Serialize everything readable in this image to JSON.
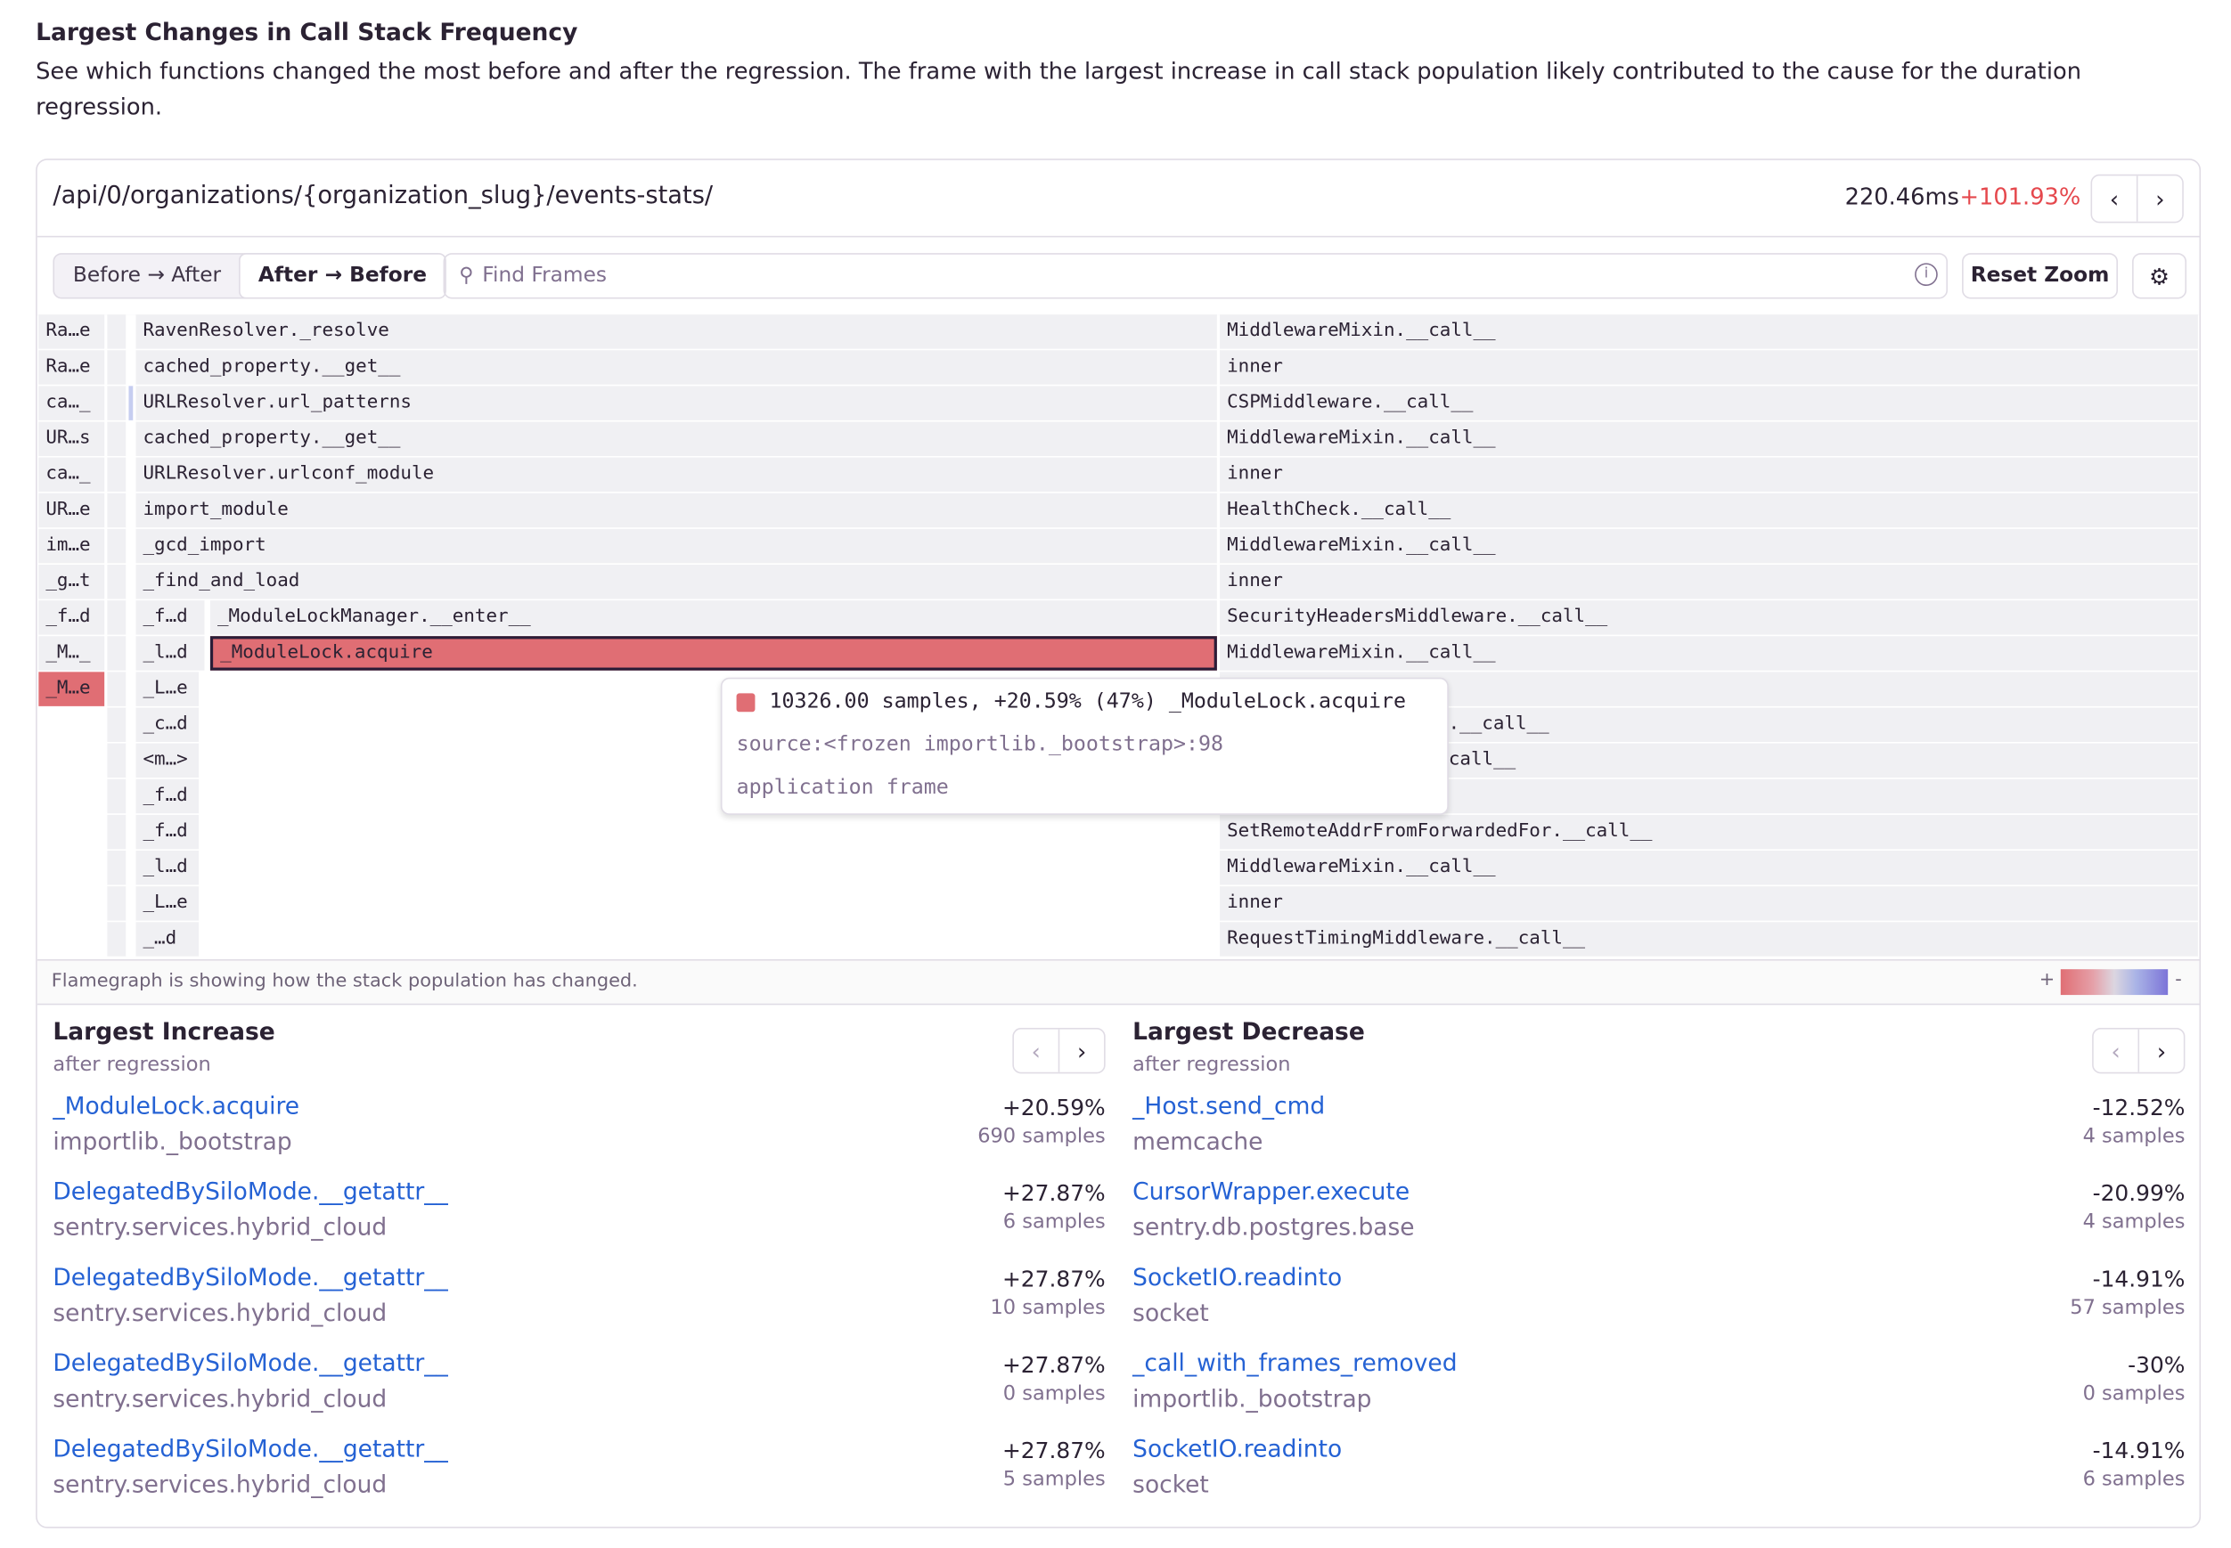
{
  "section": {
    "title": "Largest Changes in Call Stack Frequency",
    "description": "See which functions changed the most before and after the regression. The frame with the largest increase in call stack population likely contributed to the cause for the duration regression."
  },
  "header": {
    "route": "/api/0/organizations/{organization_slug}/events-stats/",
    "duration": "220.46ms",
    "change": "+101.93%",
    "prev_icon": "chevron-left-icon",
    "next_icon": "chevron-right-icon"
  },
  "toolbar": {
    "modes": [
      "Before → After",
      "After → Before"
    ],
    "active_mode": "After → Before",
    "search_placeholder": "Find Frames",
    "reset_zoom": "Reset Zoom",
    "settings_icon": "gear-icon"
  },
  "colors": {
    "increase": "#e06e74",
    "decrease": "#7c74d8",
    "link": "#2562d4",
    "change_text": "#e5484d"
  },
  "flamegraph": {
    "lane_a": [
      "Ra…e",
      "Ra…e",
      "ca…_",
      "UR…s",
      "ca…_",
      "UR…e",
      "im…e",
      "_g…t",
      "_f…d",
      "_M…_",
      "_M…e"
    ],
    "lane_main": [
      "RavenResolver._resolve",
      "cached_property.__get__",
      "URLResolver.url_patterns",
      "cached_property.__get__",
      "URLResolver.urlconf_module",
      "import_module",
      "_gcd_import",
      "_find_and_load"
    ],
    "lane_short": [
      "_f…d",
      "_l…d",
      "_L…e",
      "_c…d",
      "<m…>",
      "_f…d",
      "_f…d",
      "_l…d",
      "_L…e",
      "_…d"
    ],
    "nested": [
      {
        "name": "_ModuleLockManager.__enter__",
        "selected": false
      },
      {
        "name": "_ModuleLock.acquire",
        "selected": true
      }
    ],
    "lane_right": [
      "MiddlewareMixin.__call__",
      "inner",
      "CSPMiddleware.__call__",
      "MiddlewareMixin.__call__",
      "inner",
      "HealthCheck.__call__",
      "MiddlewareMixin.__call__",
      "inner",
      "SecurityHeadersMiddleware.__call__",
      "MiddlewareMixin.__call__",
      "",
      "e.__call__",
      "call__",
      "",
      "SetRemoteAddrFromForwardedFor.__call__",
      "MiddlewareMixin.__call__",
      "inner",
      "RequestTimingMiddleware.__call__"
    ],
    "tooltip": {
      "summary": "10326.00 samples, +20.59% (47%) _ModuleLock.acquire",
      "source": "source:<frozen importlib._bootstrap>:98",
      "kind": "application frame"
    },
    "caption": "Flamegraph is showing how the stack population has changed.",
    "legend_plus": "+",
    "legend_minus": "-"
  },
  "increase": {
    "title": "Largest Increase",
    "subtitle": "after regression",
    "items": [
      {
        "name": "_ModuleLock.acquire",
        "module": "importlib._bootstrap",
        "change": "+20.59%",
        "samples": "690 samples"
      },
      {
        "name": "DelegatedBySiloMode.__getattr__",
        "module": "sentry.services.hybrid_cloud",
        "change": "+27.87%",
        "samples": "6 samples"
      },
      {
        "name": "DelegatedBySiloMode.__getattr__",
        "module": "sentry.services.hybrid_cloud",
        "change": "+27.87%",
        "samples": "10 samples"
      },
      {
        "name": "DelegatedBySiloMode.__getattr__",
        "module": "sentry.services.hybrid_cloud",
        "change": "+27.87%",
        "samples": "0 samples"
      },
      {
        "name": "DelegatedBySiloMode.__getattr__",
        "module": "sentry.services.hybrid_cloud",
        "change": "+27.87%",
        "samples": "5 samples"
      }
    ]
  },
  "decrease": {
    "title": "Largest Decrease",
    "subtitle": "after regression",
    "items": [
      {
        "name": "_Host.send_cmd",
        "module": "memcache",
        "change": "-12.52%",
        "samples": "4 samples"
      },
      {
        "name": "CursorWrapper.execute",
        "module": "sentry.db.postgres.base",
        "change": "-20.99%",
        "samples": "4 samples"
      },
      {
        "name": "SocketIO.readinto",
        "module": "socket",
        "change": "-14.91%",
        "samples": "57 samples"
      },
      {
        "name": "_call_with_frames_removed",
        "module": "importlib._bootstrap",
        "change": "-30%",
        "samples": "0 samples"
      },
      {
        "name": "SocketIO.readinto",
        "module": "socket",
        "change": "-14.91%",
        "samples": "6 samples"
      }
    ]
  }
}
